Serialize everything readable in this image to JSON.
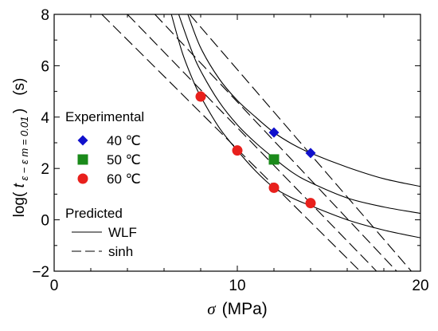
{
  "chart_data": {
    "type": "scatter",
    "xlabel": {
      "symbol": "σ",
      "unit": "(MPa)"
    },
    "ylabel": {
      "prefix": "log(",
      "t": "t",
      "sub": "ε − ε m = 0.01",
      "suffix": ")",
      "unit": "(s)"
    },
    "xlim": [
      0,
      20
    ],
    "ylim": [
      -2,
      8
    ],
    "xticks": [
      0,
      10,
      20
    ],
    "xtick_labels": [
      "0",
      "10",
      "20"
    ],
    "yticks": [
      -2,
      0,
      2,
      4,
      6,
      8
    ],
    "ytick_labels": [
      "−2",
      "0",
      "2",
      "4",
      "6",
      "8"
    ],
    "grid": false,
    "legend": {
      "placement": "left",
      "experimental_title": "Experimental",
      "predicted_title": "Predicted",
      "entries": [
        {
          "label": "40 ℃",
          "marker": "diamond",
          "color": "#1010cc"
        },
        {
          "label": "50 ℃",
          "marker": "square",
          "color": "#1a8a1a"
        },
        {
          "label": "60 ℃",
          "marker": "circle",
          "color": "#e8201c"
        }
      ],
      "line_entries": [
        {
          "label": "WLF",
          "style": "solid"
        },
        {
          "label": "sinh",
          "style": "dashed"
        }
      ]
    },
    "series": [
      {
        "name": "40 ℃",
        "marker": "diamond",
        "color": "#1010cc",
        "x": [
          12,
          14
        ],
        "y": [
          3.4,
          2.6
        ]
      },
      {
        "name": "50 ℃",
        "marker": "square",
        "color": "#1a8a1a",
        "x": [
          12
        ],
        "y": [
          2.35
        ]
      },
      {
        "name": "60 ℃",
        "marker": "circle",
        "color": "#e8201c",
        "x": [
          8,
          10,
          12,
          14
        ],
        "y": [
          4.8,
          2.7,
          1.25,
          0.65
        ]
      }
    ],
    "lines": [
      {
        "style": "solid",
        "points": [
          [
            7.3,
            8
          ],
          [
            8,
            6.7
          ],
          [
            9,
            5.5
          ],
          [
            10,
            4.65
          ],
          [
            11,
            4.0
          ],
          [
            12,
            3.4
          ],
          [
            13,
            2.95
          ],
          [
            14,
            2.6
          ],
          [
            16,
            2.05
          ],
          [
            18,
            1.6
          ],
          [
            20,
            1.3
          ]
        ]
      },
      {
        "style": "solid",
        "points": [
          [
            6.8,
            8
          ],
          [
            7.5,
            6.6
          ],
          [
            8,
            5.8
          ],
          [
            9,
            4.6
          ],
          [
            10,
            3.7
          ],
          [
            11,
            3.0
          ],
          [
            12,
            2.4
          ],
          [
            13,
            1.85
          ],
          [
            14,
            1.45
          ],
          [
            16,
            0.85
          ],
          [
            18,
            0.5
          ],
          [
            20,
            0.25
          ]
        ]
      },
      {
        "style": "solid",
        "points": [
          [
            6.4,
            8
          ],
          [
            7,
            6.5
          ],
          [
            7.6,
            5.4
          ],
          [
            8,
            4.8
          ],
          [
            9,
            3.6
          ],
          [
            10,
            2.7
          ],
          [
            11,
            1.9
          ],
          [
            12,
            1.25
          ],
          [
            13,
            0.85
          ],
          [
            14,
            0.55
          ],
          [
            16,
            0.0
          ],
          [
            18,
            -0.4
          ],
          [
            20,
            -0.7
          ]
        ]
      },
      {
        "style": "dashed",
        "points": [
          [
            7.4,
            8
          ],
          [
            19.5,
            -2
          ]
        ]
      },
      {
        "style": "dashed",
        "points": [
          [
            5.5,
            8
          ],
          [
            18.7,
            -2
          ]
        ]
      },
      {
        "style": "dashed",
        "points": [
          [
            4.0,
            8
          ],
          [
            17.6,
            -2
          ]
        ]
      },
      {
        "style": "dashed",
        "points": [
          [
            2.6,
            8
          ],
          [
            16.7,
            -2
          ]
        ]
      }
    ]
  }
}
